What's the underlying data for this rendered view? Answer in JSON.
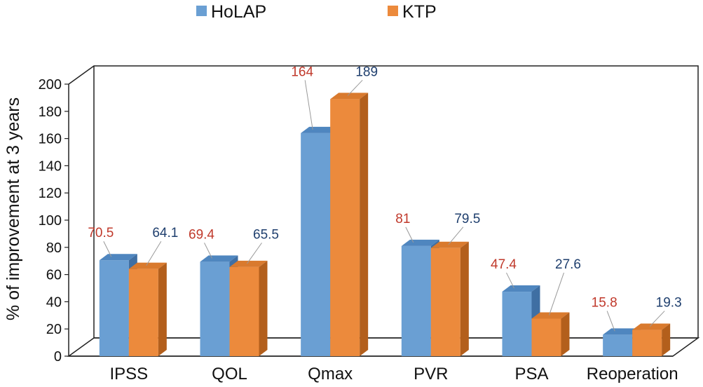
{
  "chart_data": {
    "type": "bar",
    "title": "",
    "xlabel": "",
    "ylabel": "% of improvement at 3 years",
    "ylim": [
      0,
      200
    ],
    "yticks": [
      0,
      20,
      40,
      60,
      80,
      100,
      120,
      140,
      160,
      180,
      200
    ],
    "categories": [
      "IPSS",
      "QOL",
      "Qmax",
      "PVR",
      "PSA",
      "Reoperation"
    ],
    "series": [
      {
        "name": "HoLAP",
        "values": [
          70.5,
          69.4,
          164,
          81,
          47.4,
          15.8
        ],
        "labels": [
          "70.5",
          "69.4",
          "164",
          "81",
          "47.4",
          "15.8"
        ]
      },
      {
        "name": "KTP",
        "values": [
          64.1,
          65.5,
          189,
          79.5,
          27.6,
          19.3
        ],
        "labels": [
          "64.1",
          "65.5",
          "189",
          "79.5",
          "27.6",
          "19.3"
        ]
      }
    ],
    "legend": "top-center",
    "grid": false,
    "style": "3d-clustered-column"
  },
  "colors": {
    "holap_front": "#6a9fd3",
    "holap_top": "#4f86bf",
    "holap_side": "#3f6fa3",
    "ktp_front": "#ec8a3c",
    "ktp_top": "#d97a2e",
    "ktp_side": "#b35f1c",
    "label_holap": "#c0392b",
    "label_ktp": "#1f3f6e",
    "axis": "#222222"
  }
}
